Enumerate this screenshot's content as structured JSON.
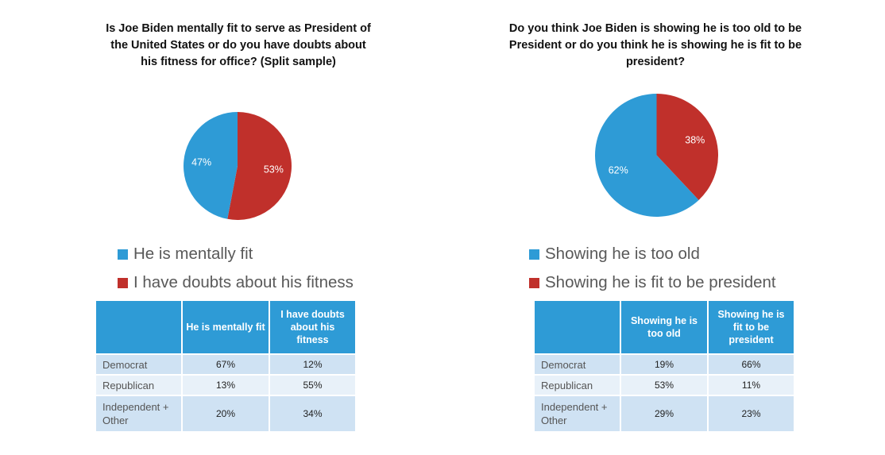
{
  "colors": {
    "blue": "#2e9bd6",
    "red": "#c0302b"
  },
  "chart_data": [
    {
      "type": "pie",
      "title": "Is Joe Biden mentally fit to serve as President of the United States or do you have doubts about his fitness for office? (Split sample)",
      "categories": [
        "He is mentally fit",
        "I have doubts about his fitness"
      ],
      "values": [
        47,
        53
      ],
      "data_labels": [
        "47%",
        "53%"
      ],
      "colors": [
        "#2e9bd6",
        "#c0302b"
      ],
      "legend": "bottom",
      "table": {
        "columns": [
          "",
          "He is mentally fit",
          "I have doubts about his fitness"
        ],
        "rows": [
          [
            "Democrat",
            "67%",
            "12%"
          ],
          [
            "Republican",
            "13%",
            "55%"
          ],
          [
            "Independent + Other",
            "20%",
            "34%"
          ]
        ]
      }
    },
    {
      "type": "pie",
      "title": "Do you think Joe Biden is showing he is too old to be President or do you think he is showing he is fit to be president?",
      "categories": [
        "Showing he is too old",
        "Showing he is fit to be president"
      ],
      "values": [
        62,
        38
      ],
      "data_labels": [
        "62%",
        "38%"
      ],
      "colors": [
        "#2e9bd6",
        "#c0302b"
      ],
      "legend": "bottom",
      "table": {
        "columns": [
          "",
          "Showing he is too old",
          "Showing he is fit to be president"
        ],
        "rows": [
          [
            "Democrat",
            "19%",
            "66%"
          ],
          [
            "Republican",
            "53%",
            "11%"
          ],
          [
            "Independent + Other",
            "29%",
            "23%"
          ]
        ]
      }
    }
  ]
}
